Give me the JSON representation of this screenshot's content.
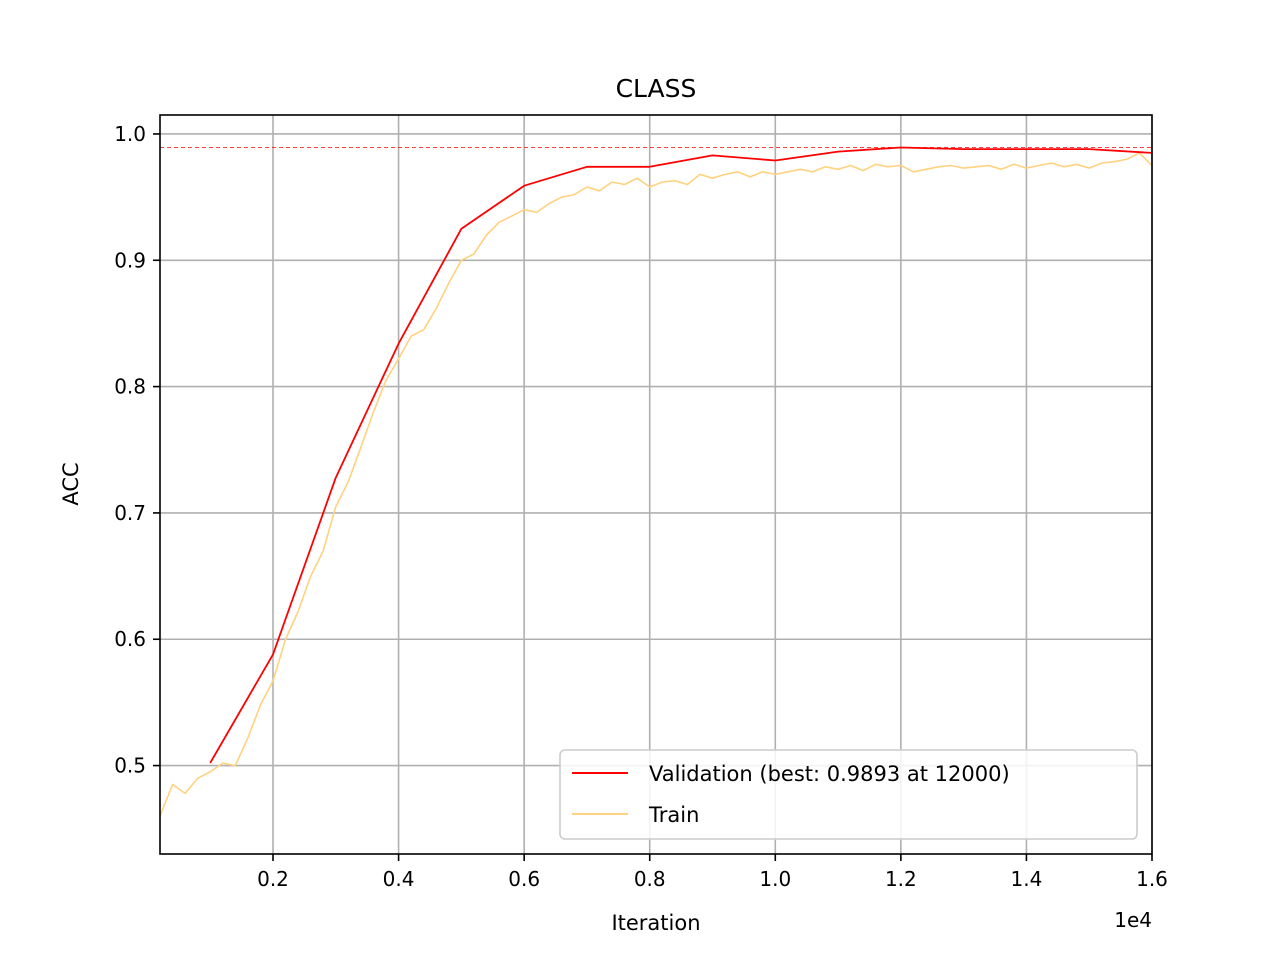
{
  "chart_data": {
    "type": "line",
    "title": "CLASS",
    "xlabel": "Iteration",
    "ylabel": "ACC",
    "x_offset_text": "1e4",
    "xlim": [
      200,
      16000
    ],
    "ylim": [
      0.43,
      1.015
    ],
    "xticks": [
      2000,
      4000,
      6000,
      8000,
      10000,
      12000,
      14000,
      16000
    ],
    "xtick_labels": [
      "0.2",
      "0.4",
      "0.6",
      "0.8",
      "1.0",
      "1.2",
      "1.4",
      "1.6"
    ],
    "yticks": [
      0.5,
      0.6,
      0.7,
      0.8,
      0.9,
      1.0
    ],
    "ytick_labels": [
      "0.5",
      "0.6",
      "0.7",
      "0.8",
      "0.9",
      "1.0"
    ],
    "grid": true,
    "legend_position": "lower-right",
    "best_value_line": 0.9893,
    "series": [
      {
        "name": "Validation (best: 0.9893 at 12000)",
        "color": "#ff0000",
        "x": [
          1000,
          2000,
          3000,
          4000,
          5000,
          6000,
          7000,
          8000,
          9000,
          10000,
          11000,
          12000,
          13000,
          14000,
          15000,
          16000
        ],
        "y": [
          0.502,
          0.588,
          0.728,
          0.834,
          0.925,
          0.959,
          0.974,
          0.974,
          0.983,
          0.979,
          0.986,
          0.9893,
          0.988,
          0.988,
          0.988,
          0.985
        ]
      },
      {
        "name": "Train",
        "color": "#ffd27f",
        "x": [
          200,
          400,
          600,
          800,
          1000,
          1200,
          1400,
          1600,
          1800,
          2000,
          2200,
          2400,
          2600,
          2800,
          3000,
          3200,
          3400,
          3600,
          3800,
          4000,
          4200,
          4400,
          4600,
          4800,
          5000,
          5200,
          5400,
          5600,
          5800,
          6000,
          6200,
          6400,
          6600,
          6800,
          7000,
          7200,
          7400,
          7600,
          7800,
          8000,
          8200,
          8400,
          8600,
          8800,
          9000,
          9200,
          9400,
          9600,
          9800,
          10000,
          10200,
          10400,
          10600,
          10800,
          11000,
          11200,
          11400,
          11600,
          11800,
          12000,
          12200,
          12400,
          12600,
          12800,
          13000,
          13200,
          13400,
          13600,
          13800,
          14000,
          14200,
          14400,
          14600,
          14800,
          15000,
          15200,
          15400,
          15600,
          15800,
          16000
        ],
        "y": [
          0.46,
          0.485,
          0.478,
          0.49,
          0.495,
          0.502,
          0.5,
          0.522,
          0.548,
          0.567,
          0.6,
          0.622,
          0.65,
          0.67,
          0.705,
          0.725,
          0.752,
          0.78,
          0.805,
          0.822,
          0.84,
          0.845,
          0.862,
          0.882,
          0.9,
          0.905,
          0.92,
          0.93,
          0.935,
          0.94,
          0.938,
          0.945,
          0.95,
          0.952,
          0.958,
          0.955,
          0.962,
          0.96,
          0.965,
          0.958,
          0.962,
          0.963,
          0.96,
          0.968,
          0.965,
          0.968,
          0.97,
          0.966,
          0.97,
          0.968,
          0.97,
          0.972,
          0.97,
          0.974,
          0.972,
          0.975,
          0.971,
          0.976,
          0.974,
          0.975,
          0.97,
          0.972,
          0.974,
          0.975,
          0.973,
          0.974,
          0.975,
          0.972,
          0.976,
          0.973,
          0.975,
          0.977,
          0.974,
          0.976,
          0.973,
          0.977,
          0.978,
          0.98,
          0.985,
          0.975
        ]
      }
    ]
  }
}
